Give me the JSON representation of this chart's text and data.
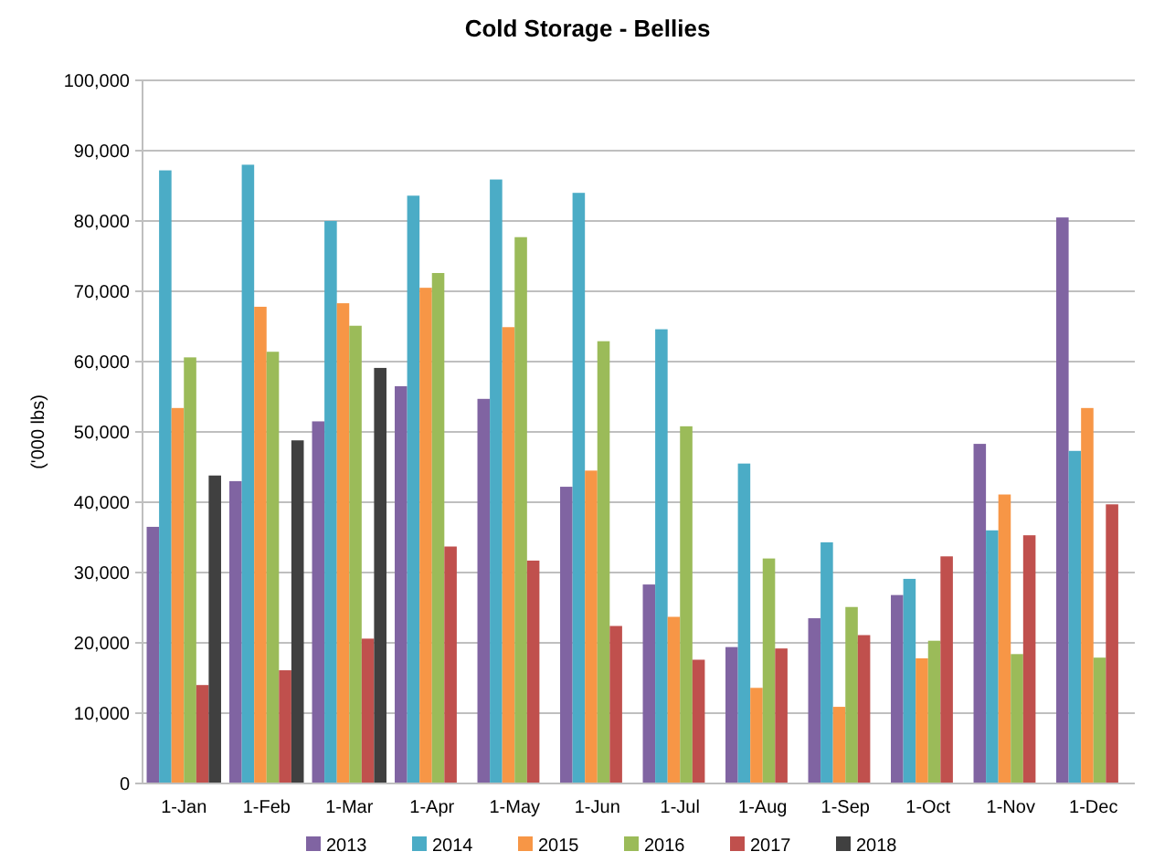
{
  "chart_data": {
    "type": "bar",
    "title": "Cold Storage - Bellies",
    "ylabel": "('000 lbs)",
    "categories": [
      "1-Jan",
      "1-Feb",
      "1-Mar",
      "1-Apr",
      "1-May",
      "1-Jun",
      "1-Jul",
      "1-Aug",
      "1-Sep",
      "1-Oct",
      "1-Nov",
      "1-Dec"
    ],
    "series": [
      {
        "name": "2013",
        "color": "#8064a2",
        "values": [
          36500,
          43000,
          51500,
          56500,
          54700,
          42200,
          28300,
          19400,
          23500,
          26800,
          48300,
          80500
        ]
      },
      {
        "name": "2014",
        "color": "#4bacc6",
        "values": [
          87200,
          88000,
          80000,
          83600,
          85900,
          84000,
          64600,
          45500,
          34300,
          29100,
          36000,
          47300
        ]
      },
      {
        "name": "2015",
        "color": "#f79646",
        "values": [
          53400,
          67800,
          68300,
          70500,
          64900,
          44500,
          23700,
          13600,
          10900,
          17800,
          41100,
          53400
        ]
      },
      {
        "name": "2016",
        "color": "#9bbb59",
        "values": [
          60600,
          61400,
          65100,
          72600,
          77700,
          62900,
          50800,
          32000,
          25100,
          20300,
          18400,
          17900
        ]
      },
      {
        "name": "2017",
        "color": "#c0504d",
        "values": [
          14000,
          16100,
          20600,
          33700,
          31700,
          22400,
          17600,
          19200,
          21100,
          32300,
          35300,
          39700
        ]
      },
      {
        "name": "2018",
        "color": "#404040",
        "values": [
          43800,
          48800,
          59100,
          null,
          null,
          null,
          null,
          null,
          null,
          null,
          null,
          null
        ]
      }
    ],
    "ylim": [
      0,
      100000
    ],
    "yticks": [
      {
        "value": 0,
        "label": "0"
      },
      {
        "value": 10000,
        "label": "10,000"
      },
      {
        "value": 20000,
        "label": "20,000"
      },
      {
        "value": 30000,
        "label": "30,000"
      },
      {
        "value": 40000,
        "label": "40,000"
      },
      {
        "value": 50000,
        "label": "50,000"
      },
      {
        "value": 60000,
        "label": "60,000"
      },
      {
        "value": 70000,
        "label": "70,000"
      },
      {
        "value": 80000,
        "label": "80,000"
      },
      {
        "value": 90000,
        "label": "90,000"
      },
      {
        "value": 100000,
        "label": "100,000"
      }
    ],
    "grid": "y",
    "legend": "bottom"
  }
}
